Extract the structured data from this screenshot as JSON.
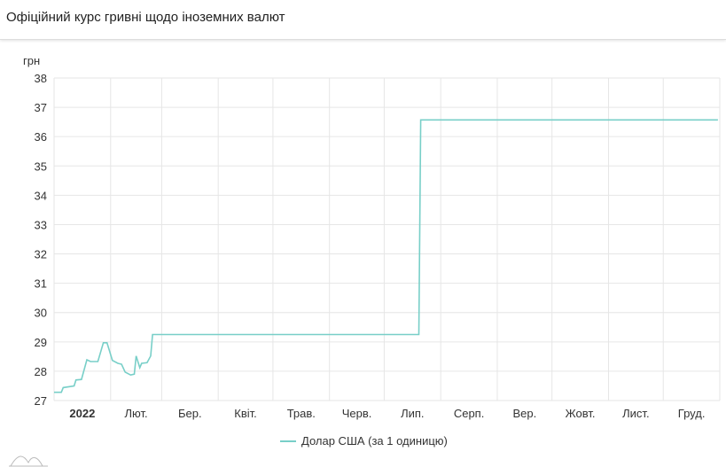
{
  "header": {
    "title": "Офіційний курс гривні щодо іноземних валют"
  },
  "chart_data": {
    "type": "line",
    "title": "Офіційний курс гривні щодо іноземних валют",
    "ylabel": "грн",
    "xlabel": "",
    "ylim": [
      27,
      38
    ],
    "xlim": [
      "2022-01-01",
      "2022-12-31"
    ],
    "yticks": [
      "27",
      "28",
      "29",
      "30",
      "31",
      "32",
      "33",
      "34",
      "35",
      "36",
      "37",
      "38"
    ],
    "xticks": [
      "2022",
      "Лют.",
      "Бер.",
      "Квіт.",
      "Трав.",
      "Черв.",
      "Лип.",
      "Серп.",
      "Вер.",
      "Жовт.",
      "Лист.",
      "Груд."
    ],
    "grid": true,
    "legend_position": "bottom",
    "colors": {
      "series": "#78cfc8",
      "grid": "#e6e6e6"
    },
    "series": [
      {
        "name": "Долар США (за 1 одиницю)",
        "x": [
          "2022-01-01",
          "2022-01-05",
          "2022-01-06",
          "2022-01-12",
          "2022-01-13",
          "2022-01-16",
          "2022-01-19",
          "2022-01-21",
          "2022-01-25",
          "2022-01-28",
          "2022-01-30",
          "2022-02-02",
          "2022-02-05",
          "2022-02-07",
          "2022-02-09",
          "2022-02-12",
          "2022-02-14",
          "2022-02-15",
          "2022-02-17",
          "2022-02-18",
          "2022-02-21",
          "2022-02-23",
          "2022-02-24",
          "2022-07-20",
          "2022-07-21",
          "2022-12-31"
        ],
        "y": [
          27.28,
          27.28,
          27.44,
          27.5,
          27.7,
          27.72,
          28.39,
          28.33,
          28.33,
          28.97,
          28.97,
          28.37,
          28.27,
          28.24,
          27.97,
          27.87,
          27.9,
          28.52,
          28.12,
          28.27,
          28.29,
          28.52,
          29.25,
          29.25,
          36.57,
          36.57
        ]
      }
    ]
  }
}
